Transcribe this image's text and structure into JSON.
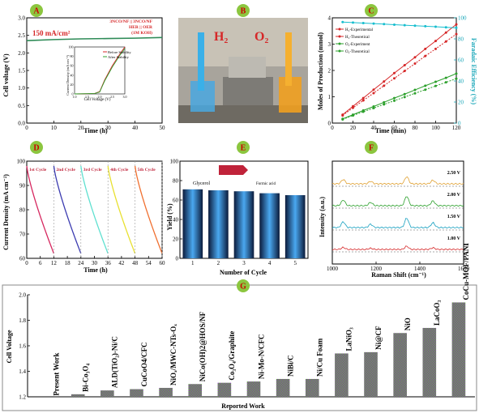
{
  "chart_data": [
    {
      "panel": "A",
      "type": "line",
      "annotation": "150 mA/cm²",
      "legend": [
        "3NCO/NF || 3NCO/NF",
        "HER || OER",
        "(1M KOH)"
      ],
      "xlabel": "Time (h)",
      "ylabel": "Cell voltage (V)",
      "xlim": [
        0,
        50
      ],
      "ylim": [
        0,
        3
      ],
      "xticks": [
        0,
        10,
        20,
        30,
        40,
        50
      ],
      "yticks": [
        0.0,
        0.5,
        1.0,
        1.5,
        2.0,
        2.5,
        3.0
      ],
      "series": [
        {
          "x": [
            0,
            10,
            20,
            30,
            40,
            50
          ],
          "values": [
            2.35,
            2.38,
            2.4,
            2.41,
            2.42,
            2.44
          ]
        }
      ],
      "inset": {
        "xlabel": "Cell Voltage (V)",
        "ylabel": "Current Density (mA cm⁻²)",
        "xticks": [
          1.0,
          1.5,
          2.0,
          2.5,
          3.0
        ],
        "yticks": [
          0,
          20,
          40,
          60,
          80,
          100
        ],
        "legend": [
          "Before Stability",
          "After Stability"
        ],
        "series": [
          {
            "name": "Before Stability",
            "x": [
              1.0,
              1.5,
              1.8,
              2.0,
              2.2,
              2.5,
              2.8,
              3.0
            ],
            "values": [
              0,
              0.5,
              1,
              5,
              30,
              60,
              85,
              100
            ]
          },
          {
            "name": "After Stability",
            "x": [
              1.0,
              1.5,
              1.8,
              2.0,
              2.2,
              2.5,
              2.8,
              3.0
            ],
            "values": [
              0,
              0.5,
              1,
              4,
              28,
              57,
              82,
              97
            ]
          }
        ]
      }
    },
    {
      "panel": "B",
      "type": "photo",
      "labels": [
        "H₂",
        "O₂"
      ]
    },
    {
      "panel": "C",
      "type": "line",
      "xlabel": "Time (min)",
      "ylabel": "Moles of Production (mmol)",
      "y2label": "Faradaic Efficiency (%)",
      "xlim": [
        0,
        120
      ],
      "ylim": [
        0,
        4
      ],
      "y2lim": [
        0,
        100
      ],
      "xticks": [
        0,
        20,
        40,
        60,
        80,
        100,
        120
      ],
      "yticks": [
        0,
        1,
        2,
        3,
        4
      ],
      "y2ticks": [
        0,
        20,
        40,
        60,
        80,
        100
      ],
      "legend": [
        "H₂-Experimental",
        "H₂-Theoretical",
        "O₂-Experiment",
        "O₂-Theoretical"
      ],
      "x": [
        10,
        20,
        30,
        40,
        50,
        60,
        70,
        80,
        90,
        100,
        110,
        120
      ],
      "series": [
        {
          "name": "H₂-Experimental",
          "color": "#d62728",
          "values": [
            0.32,
            0.64,
            0.95,
            1.27,
            1.58,
            1.9,
            2.2,
            2.5,
            2.82,
            3.12,
            3.44,
            3.75
          ]
        },
        {
          "name": "H₂-Theoretical",
          "color": "#d62728",
          "values": [
            0.29,
            0.58,
            0.86,
            1.14,
            1.42,
            1.7,
            1.98,
            2.26,
            2.55,
            2.82,
            3.1,
            3.38
          ]
        },
        {
          "name": "O₂-Experiment",
          "color": "#2ca02c",
          "values": [
            0.16,
            0.32,
            0.48,
            0.63,
            0.79,
            0.95,
            1.1,
            1.26,
            1.42,
            1.57,
            1.72,
            1.88
          ]
        },
        {
          "name": "O₂-Theoretical",
          "color": "#2ca02c",
          "values": [
            0.14,
            0.29,
            0.43,
            0.57,
            0.71,
            0.85,
            0.99,
            1.13,
            1.27,
            1.41,
            1.55,
            1.69
          ]
        },
        {
          "name": "Faradaic Efficiency",
          "axis": "right",
          "color": "#17becf",
          "values": [
            96,
            95.5,
            95,
            94.5,
            94,
            93.5,
            93,
            92.5,
            92,
            91.5,
            91,
            90.5
          ]
        }
      ]
    },
    {
      "panel": "D",
      "type": "line",
      "xlabel": "Time (h)",
      "ylabel": "Current Density (mA cm⁻²)",
      "xlim": [
        0,
        60
      ],
      "ylim": [
        60,
        100
      ],
      "xticks": [
        0,
        6,
        12,
        18,
        24,
        30,
        36,
        42,
        48,
        54,
        60
      ],
      "yticks": [
        60,
        70,
        80,
        90,
        100
      ],
      "cycles": [
        {
          "label": "1st Cycle",
          "color": "#d6275f",
          "start": 0,
          "end": 12
        },
        {
          "label": "2nd Cycle",
          "color": "#3b3bb0",
          "start": 12,
          "end": 24
        },
        {
          "label": "3rd Cycle",
          "color": "#5fe0d0",
          "start": 24,
          "end": 36
        },
        {
          "label": "4th Cycle",
          "color": "#e8e030",
          "start": 36,
          "end": 48
        },
        {
          "label": "5th Cycle",
          "color": "#f07030",
          "start": 48,
          "end": 60
        }
      ]
    },
    {
      "panel": "E",
      "type": "bar",
      "xlabel": "Number of Cycle",
      "ylabel": "Yield (%)",
      "ylim": [
        0,
        100
      ],
      "yticks": [
        0,
        20,
        40,
        60,
        80,
        100
      ],
      "categories": [
        "1",
        "2",
        "3",
        "4",
        "5"
      ],
      "values": [
        71,
        70,
        69,
        67,
        65
      ],
      "labels": [
        "Glycerol",
        "Formic acid"
      ]
    },
    {
      "panel": "F",
      "type": "line",
      "xlabel": "Raman Shift (cm⁻¹)",
      "ylabel": "Intensity (a.u.)",
      "xlim": [
        1000,
        1600
      ],
      "xticks": [
        1000,
        1200,
        1400,
        1600
      ],
      "traces": [
        {
          "label": "2.50 V",
          "color": "#e0a030"
        },
        {
          "label": "2.00 V",
          "color": "#2ca02c"
        },
        {
          "label": "1.50 V",
          "color": "#17a0c0"
        },
        {
          "label": "1.00 V",
          "color": "#d62728"
        }
      ]
    },
    {
      "panel": "G",
      "type": "bar",
      "xlabel": "Reported Work",
      "ylabel": "Cell Voltage",
      "ylim": [
        1.2,
        2.0
      ],
      "yticks": [
        1.2,
        1.4,
        1.6,
        1.8,
        2.0
      ],
      "categories": [
        "Present Work",
        "Bi-Co₃O₄",
        "ALD(TiO₂)-Ni/C",
        "CuCoO4/CFC",
        "NiOₓ/MWC-NTs-Oₓ",
        "NiCo(OH)2@HOS/NF",
        "Co₃O₄/Graphite",
        "Ni-Mo-N/CFC",
        "NiBi/C",
        "Ni/Cu Foam",
        "LaNiO₃",
        "Ni@CF",
        "NiO",
        "LaCoO₃",
        "CoCu-MOF/PANI"
      ],
      "values": [
        1.19,
        1.22,
        1.25,
        1.26,
        1.27,
        1.3,
        1.31,
        1.32,
        1.34,
        1.34,
        1.54,
        1.55,
        1.7,
        1.74,
        1.94
      ]
    }
  ]
}
